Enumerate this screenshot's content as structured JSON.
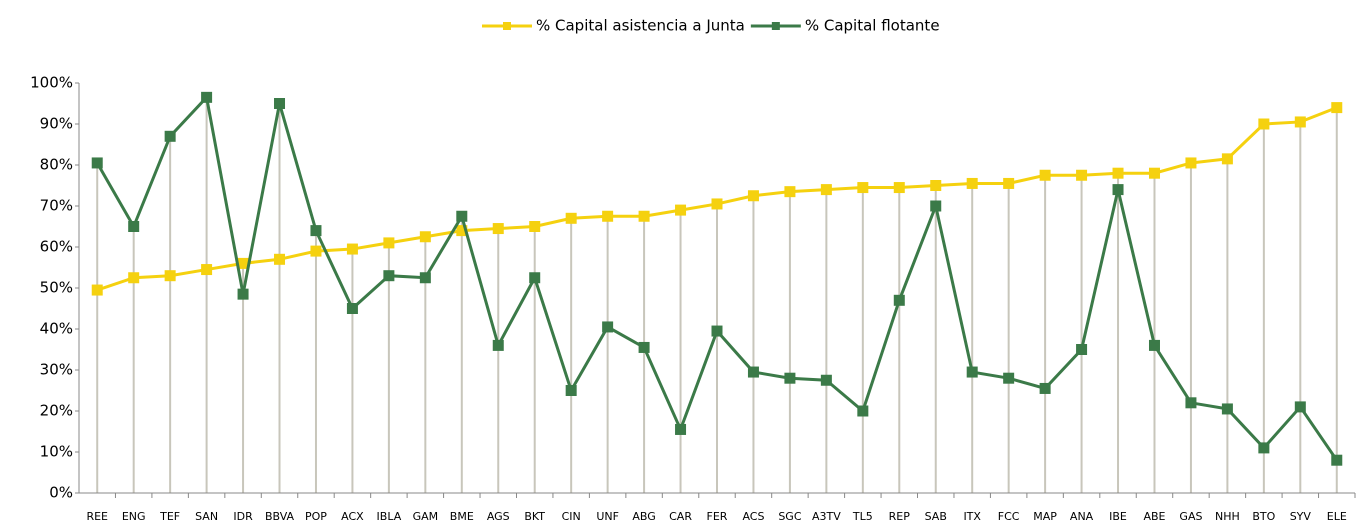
{
  "chart_data": {
    "type": "line",
    "categories": [
      "REE",
      "ENG",
      "TEF",
      "SAN",
      "IDR",
      "BBVA",
      "POP",
      "ACX",
      "IBLA",
      "GAM",
      "BME",
      "AGS",
      "BKT",
      "CIN",
      "UNF",
      "ABG",
      "CAR",
      "FER",
      "ACS",
      "SGC",
      "A3TV",
      "TL5",
      "REP",
      "SAB",
      "ITX",
      "FCC",
      "MAP",
      "ANA",
      "IBE",
      "ABE",
      "GAS",
      "NHH",
      "BTO",
      "SYV",
      "ELE"
    ],
    "series": [
      {
        "name": "% Capital asistencia a Junta",
        "color": "#f5d10f",
        "values": [
          49.5,
          52.5,
          53,
          54.5,
          56,
          57,
          59,
          59.5,
          61,
          62.5,
          64,
          64.5,
          65,
          67,
          67.5,
          67.5,
          69,
          70.5,
          72.5,
          73.5,
          74,
          74.5,
          74.5,
          75,
          75.5,
          75.5,
          77.5,
          77.5,
          78,
          78,
          80.5,
          81.5,
          90,
          90.5,
          94
        ]
      },
      {
        "name": "% Capital flotante",
        "color": "#3b7a48",
        "values": [
          80.5,
          65,
          87,
          96.5,
          48.5,
          95,
          64,
          45,
          53,
          52.5,
          67.5,
          36,
          52.5,
          25,
          40.5,
          35.5,
          15.5,
          39.5,
          29.5,
          28,
          27.5,
          20,
          47,
          70,
          29.5,
          28,
          25.5,
          35,
          74,
          36,
          22,
          20.5,
          11,
          21,
          8
        ]
      }
    ],
    "ylim": [
      0,
      100
    ],
    "yticks": [
      {
        "value": 0,
        "label": "0%"
      },
      {
        "value": 10,
        "label": "10%"
      },
      {
        "value": 20,
        "label": "20%"
      },
      {
        "value": 30,
        "label": "30%"
      },
      {
        "value": 40,
        "label": "40%"
      },
      {
        "value": 50,
        "label": "50%"
      },
      {
        "value": 60,
        "label": "60%"
      },
      {
        "value": 70,
        "label": "70%"
      },
      {
        "value": 80,
        "label": "80%"
      },
      {
        "value": 90,
        "label": "90%"
      },
      {
        "value": 100,
        "label": "100%"
      }
    ],
    "legend": "top"
  }
}
